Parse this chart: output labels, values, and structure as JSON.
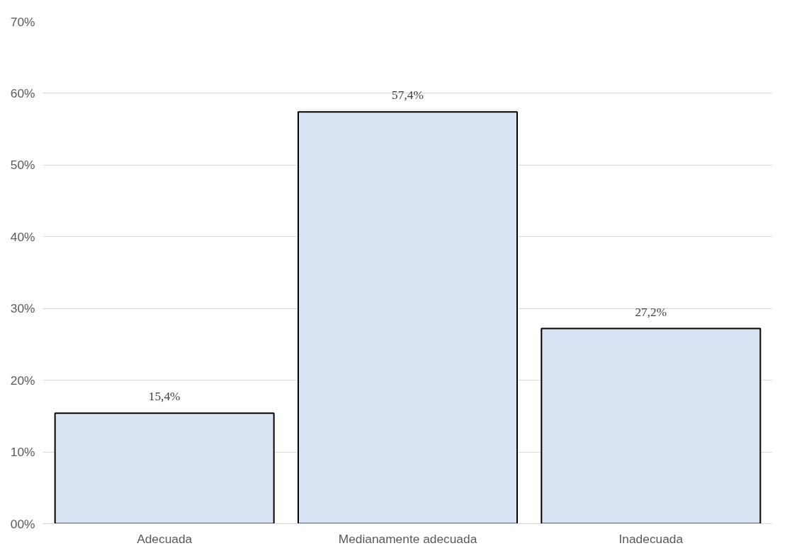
{
  "chart_data": {
    "type": "bar",
    "categories": [
      "Adecuada",
      "Medianamente adecuada",
      "Inadecuada"
    ],
    "values": [
      15.4,
      57.4,
      27.2
    ],
    "value_labels": [
      "15,4%",
      "57,4%",
      "27,2%"
    ],
    "color": "#dae3f3",
    "ylim": [
      0,
      70
    ],
    "yticks": [
      {
        "value": 0,
        "label": "00%"
      },
      {
        "value": 10,
        "label": "10%"
      },
      {
        "value": 20,
        "label": "20%"
      },
      {
        "value": 30,
        "label": "30%"
      },
      {
        "value": 40,
        "label": "40%"
      },
      {
        "value": 50,
        "label": "50%"
      },
      {
        "value": 60,
        "label": "60%"
      },
      {
        "value": 70,
        "label": "70%"
      }
    ],
    "grid": "y"
  }
}
